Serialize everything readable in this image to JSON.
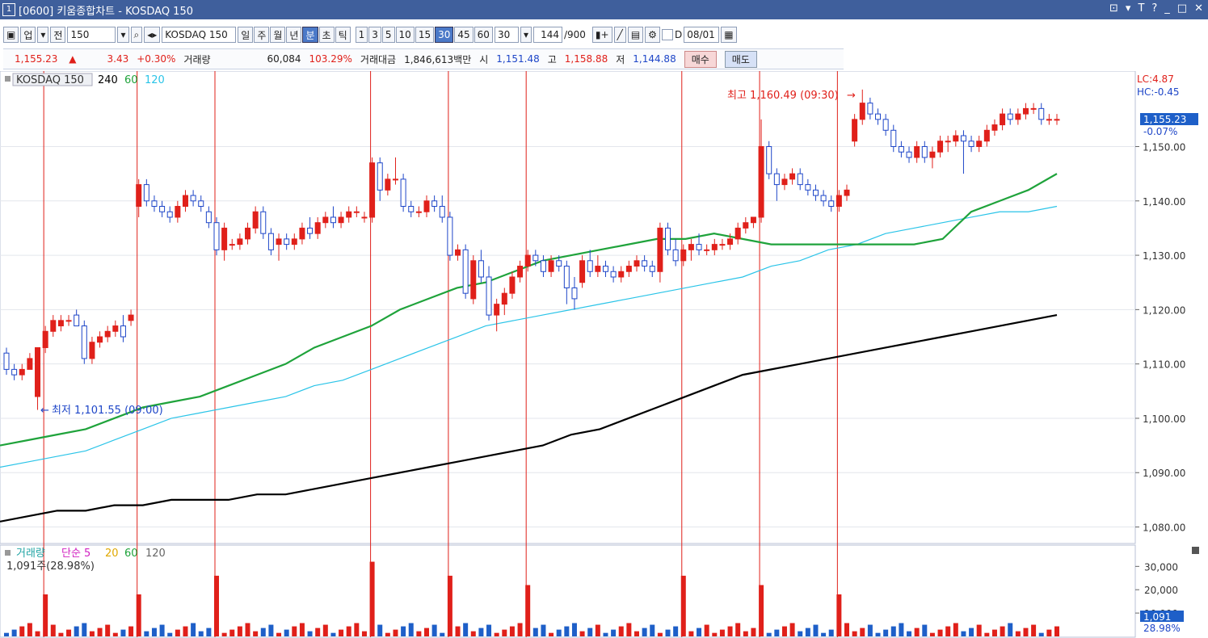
{
  "window": {
    "number": "1",
    "title": "[0600] 키움종합차트 - KOSDAQ 150",
    "controls": [
      "⊡",
      "⧉",
      "✕"
    ]
  },
  "toolbar": {
    "market": "업",
    "prev_label": "전",
    "code": "150",
    "name": "KOSDAQ 150",
    "periods": [
      "일",
      "주",
      "월",
      "년",
      "분",
      "초",
      "틱"
    ],
    "selected_period": "분",
    "intervals": [
      "1",
      "3",
      "5",
      "10",
      "15",
      "30",
      "45",
      "60"
    ],
    "selected_interval": "30",
    "interval_value": "30",
    "count": "144",
    "count_max": "/900",
    "date_label": "D",
    "date": "08/01"
  },
  "quote": {
    "price": "1,155.23",
    "arrow": "▲",
    "change": "3.43",
    "change_pct": "+0.30%",
    "volume_label": "거래량",
    "volume": "60,084",
    "volume_pct": "103.29%",
    "amount_label": "거래대금",
    "amount": "1,846,613백만",
    "open_label": "시",
    "open": "1,151.48",
    "high_label": "고",
    "high": "1,158.88",
    "low_label": "저",
    "low": "1,144.88",
    "buy": "매수",
    "sell": "매도"
  },
  "price_panel": {
    "legend_name": "KOSDAQ 150",
    "ma_labels": [
      "240",
      "60",
      "120"
    ],
    "ma_colors": [
      "#000000",
      "#1fa33b",
      "#2ac4e8"
    ],
    "high_annotation": "최고 1,160.49 (09:30)",
    "low_annotation": "최저 1,101.55 (09:00)",
    "lc": "LC:4.87",
    "hc": "HC:-0.45",
    "current_tag": "1,155.23",
    "current_pct": "-0.07%"
  },
  "volume_panel": {
    "legend_name": "거래량",
    "ma_title": "단순 5",
    "ma_labels": [
      "20",
      "60",
      "120"
    ],
    "current": "1,091주(28.98%)",
    "tag": "1,091",
    "tag_pct": "28.98%"
  },
  "chart_data": [
    {
      "type": "candlestick",
      "y_ticks": [
        "1,150.00",
        "1,140.00",
        "1,130.00",
        "1,120.00",
        "1,110.00",
        "1,100.00",
        "1,090.00",
        "1,080.00"
      ],
      "ylim": [
        1078,
        1163
      ],
      "ohlc": [
        [
          1112,
          1113,
          1108,
          1109
        ],
        [
          1109,
          1110,
          1107,
          1108
        ],
        [
          1108,
          1110,
          1107,
          1109
        ],
        [
          1109,
          1112,
          1109,
          1111
        ],
        [
          1104,
          1113,
          1101.55,
          1113
        ],
        [
          1113,
          1117,
          1112,
          1116
        ],
        [
          1116,
          1119,
          1115,
          1118
        ],
        [
          1117,
          1119,
          1116,
          1118
        ],
        [
          1118,
          1119,
          1117,
          1118
        ],
        [
          1119,
          1120,
          1117,
          1117
        ],
        [
          1117,
          1118,
          1110,
          1111
        ],
        [
          1111,
          1115,
          1110,
          1114
        ],
        [
          1114,
          1116,
          1113,
          1115
        ],
        [
          1115,
          1117,
          1114,
          1116
        ],
        [
          1116,
          1118,
          1115,
          1117
        ],
        [
          1117,
          1119,
          1114,
          1115
        ],
        [
          1118,
          1120,
          1117,
          1119
        ],
        [
          1139,
          1144,
          1137,
          1143
        ],
        [
          1143,
          1144,
          1139,
          1140
        ],
        [
          1140,
          1141,
          1138,
          1139
        ],
        [
          1139,
          1140,
          1137,
          1138
        ],
        [
          1138,
          1139,
          1136,
          1137
        ],
        [
          1137,
          1140,
          1136,
          1139
        ],
        [
          1139,
          1142,
          1138,
          1141
        ],
        [
          1141,
          1142,
          1139,
          1140
        ],
        [
          1140,
          1141,
          1138,
          1139
        ],
        [
          1138,
          1139,
          1135,
          1136
        ],
        [
          1136,
          1137,
          1130,
          1131
        ],
        [
          1131,
          1136,
          1129,
          1135
        ],
        [
          1132,
          1133,
          1131,
          1132
        ],
        [
          1132,
          1134,
          1131,
          1133
        ],
        [
          1133,
          1136,
          1132,
          1135
        ],
        [
          1135,
          1139,
          1134,
          1138
        ],
        [
          1138,
          1139,
          1133,
          1134
        ],
        [
          1134,
          1135,
          1130,
          1131
        ],
        [
          1132,
          1134,
          1129,
          1133
        ],
        [
          1133,
          1134,
          1131,
          1132
        ],
        [
          1132,
          1134,
          1131,
          1133
        ],
        [
          1133,
          1136,
          1132,
          1135
        ],
        [
          1135,
          1137,
          1133,
          1134
        ],
        [
          1134,
          1137,
          1133,
          1136
        ],
        [
          1136,
          1138,
          1135,
          1137
        ],
        [
          1137,
          1139,
          1135,
          1136
        ],
        [
          1136,
          1138,
          1135,
          1137
        ],
        [
          1137,
          1139,
          1136,
          1138
        ],
        [
          1138,
          1139,
          1137,
          1138
        ],
        [
          1137,
          1138,
          1136,
          1137
        ],
        [
          1137,
          1148,
          1136,
          1147
        ],
        [
          1147,
          1148,
          1140,
          1142
        ],
        [
          1142,
          1145,
          1141,
          1144
        ],
        [
          1144,
          1148,
          1143,
          1144
        ],
        [
          1144,
          1145,
          1138,
          1139
        ],
        [
          1139,
          1140,
          1137,
          1138
        ],
        [
          1138,
          1139,
          1137,
          1138
        ],
        [
          1138,
          1141,
          1137,
          1140
        ],
        [
          1140,
          1141,
          1138,
          1139
        ],
        [
          1139,
          1141,
          1136,
          1137
        ],
        [
          1137,
          1138,
          1129,
          1130
        ],
        [
          1130,
          1132,
          1129,
          1131
        ],
        [
          1131,
          1132,
          1122,
          1123
        ],
        [
          1122,
          1130,
          1121,
          1129
        ],
        [
          1129,
          1131,
          1125,
          1126
        ],
        [
          1126,
          1128,
          1118,
          1119
        ],
        [
          1119,
          1122,
          1116,
          1121
        ],
        [
          1121,
          1124,
          1119,
          1123
        ],
        [
          1123,
          1127,
          1122,
          1126
        ],
        [
          1126,
          1129,
          1125,
          1128
        ],
        [
          1128,
          1131,
          1127,
          1130
        ],
        [
          1130,
          1131,
          1128,
          1129
        ],
        [
          1129,
          1130,
          1126,
          1127
        ],
        [
          1127,
          1130,
          1126,
          1129
        ],
        [
          1129,
          1130,
          1127,
          1128
        ],
        [
          1128,
          1129,
          1121,
          1124
        ],
        [
          1124,
          1126,
          1120,
          1122
        ],
        [
          1125,
          1130,
          1124,
          1129
        ],
        [
          1129,
          1131,
          1126,
          1127
        ],
        [
          1127,
          1130,
          1126,
          1128
        ],
        [
          1128,
          1129,
          1126,
          1127
        ],
        [
          1127,
          1128,
          1125,
          1126
        ],
        [
          1126,
          1128,
          1125,
          1127
        ],
        [
          1127,
          1129,
          1126,
          1128
        ],
        [
          1128,
          1130,
          1127,
          1129
        ],
        [
          1129,
          1130,
          1127,
          1128
        ],
        [
          1128,
          1129,
          1126,
          1127
        ],
        [
          1127,
          1136,
          1125,
          1135
        ],
        [
          1135,
          1136,
          1130,
          1131
        ],
        [
          1131,
          1133,
          1128,
          1129
        ],
        [
          1129,
          1132,
          1128,
          1131
        ],
        [
          1131,
          1133,
          1129,
          1132
        ],
        [
          1132,
          1134,
          1130,
          1131
        ],
        [
          1131,
          1132,
          1130,
          1131
        ],
        [
          1131,
          1133,
          1130,
          1132
        ],
        [
          1132,
          1133,
          1131,
          1132
        ],
        [
          1132,
          1134,
          1131,
          1133
        ],
        [
          1133,
          1136,
          1132,
          1135
        ],
        [
          1135,
          1137,
          1134,
          1136
        ],
        [
          1136,
          1137,
          1135,
          1137
        ],
        [
          1137,
          1155,
          1136,
          1150
        ],
        [
          1150,
          1151,
          1144,
          1145
        ],
        [
          1145,
          1146,
          1140,
          1143
        ],
        [
          1143,
          1145,
          1142,
          1144
        ],
        [
          1144,
          1146,
          1143,
          1145
        ],
        [
          1145,
          1146,
          1142,
          1143
        ],
        [
          1143,
          1144,
          1141,
          1142
        ],
        [
          1142,
          1143,
          1140,
          1141
        ],
        [
          1141,
          1142,
          1139,
          1140
        ],
        [
          1140,
          1141,
          1138,
          1139
        ],
        [
          1139,
          1142,
          1138,
          1141
        ],
        [
          1141,
          1143,
          1140,
          1142
        ],
        [
          1151,
          1156,
          1150,
          1155
        ],
        [
          1155,
          1160.49,
          1154,
          1158
        ],
        [
          1158,
          1159,
          1155,
          1156
        ],
        [
          1156,
          1157,
          1154,
          1155
        ],
        [
          1155,
          1156,
          1152,
          1153
        ],
        [
          1153,
          1154,
          1149,
          1150
        ],
        [
          1150,
          1151,
          1148,
          1149
        ],
        [
          1149,
          1150,
          1147,
          1148
        ],
        [
          1148,
          1151,
          1147,
          1150
        ],
        [
          1150,
          1151,
          1147,
          1148
        ],
        [
          1148,
          1150,
          1146,
          1149
        ],
        [
          1149,
          1152,
          1148,
          1151
        ],
        [
          1151,
          1152,
          1149,
          1151
        ],
        [
          1151,
          1153,
          1150,
          1152
        ],
        [
          1152,
          1153,
          1145,
          1151
        ],
        [
          1151,
          1152,
          1149,
          1150
        ],
        [
          1150,
          1152,
          1149,
          1151
        ],
        [
          1151,
          1154,
          1150,
          1153
        ],
        [
          1153,
          1155,
          1152,
          1154
        ],
        [
          1154,
          1157,
          1153,
          1156
        ],
        [
          1156,
          1157,
          1154,
          1155
        ],
        [
          1155,
          1157,
          1154,
          1156
        ],
        [
          1156,
          1158,
          1155,
          1157
        ],
        [
          1157,
          1158,
          1156,
          1157
        ],
        [
          1157,
          1158,
          1154,
          1155
        ],
        [
          1155,
          1156,
          1154,
          1155
        ],
        [
          1155,
          1156,
          1154,
          1155
        ]
      ],
      "ma60": [
        1095,
        1096,
        1097,
        1098,
        1100,
        1102,
        1103,
        1104,
        1106,
        1108,
        1110,
        1113,
        1115,
        1117,
        1120,
        1122,
        1124,
        1125,
        1127,
        1129,
        1130,
        1131,
        1132,
        1133,
        1133,
        1134,
        1133,
        1132,
        1132,
        1132,
        1132,
        1132,
        1132,
        1133,
        1138,
        1140,
        1142,
        1145
      ],
      "ma120": [
        1091,
        1092,
        1093,
        1094,
        1096,
        1098,
        1100,
        1101,
        1102,
        1103,
        1104,
        1106,
        1107,
        1109,
        1111,
        1113,
        1115,
        1117,
        1118,
        1119,
        1120,
        1121,
        1122,
        1123,
        1124,
        1125,
        1126,
        1128,
        1129,
        1131,
        1132,
        1134,
        1135,
        1136,
        1137,
        1138,
        1138,
        1139
      ],
      "ma240": [
        1081,
        1082,
        1083,
        1083,
        1084,
        1084,
        1085,
        1085,
        1085,
        1086,
        1086,
        1087,
        1088,
        1089,
        1090,
        1091,
        1092,
        1093,
        1094,
        1095,
        1097,
        1098,
        1100,
        1102,
        1104,
        1106,
        1108,
        1109,
        1110,
        1111,
        1112,
        1113,
        1114,
        1115,
        1116,
        1117,
        1118,
        1119
      ]
    },
    {
      "type": "bar",
      "y_ticks": [
        "30,000",
        "20,000",
        "10,000"
      ],
      "ylim": [
        0,
        36000
      ]
    }
  ]
}
